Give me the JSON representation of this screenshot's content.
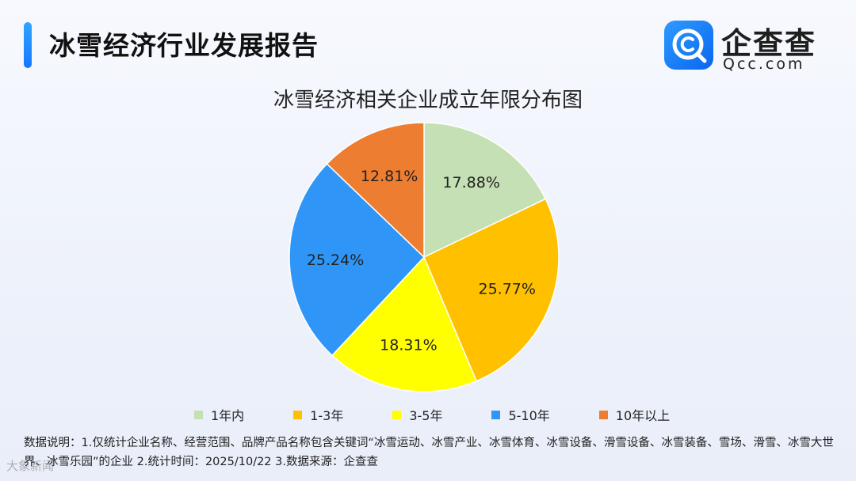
{
  "header": {
    "report_title": "冰雪经济行业发展报告",
    "accent_color": "#1677ff"
  },
  "logo": {
    "icon": "qcc-logo-icon",
    "name": "企查查",
    "domain": "Qcc.com"
  },
  "chart_data": {
    "type": "pie",
    "title": "冰雪经济相关企业成立年限分布图",
    "categories": [
      "1年内",
      "1-3年",
      "3-5年",
      "5-10年",
      "10年以上"
    ],
    "values": [
      17.88,
      25.77,
      18.31,
      25.24,
      12.81
    ],
    "labels": [
      "17.88%",
      "25.77%",
      "18.31%",
      "25.24%",
      "12.81%"
    ],
    "colors": [
      "#c5e0b4",
      "#ffc000",
      "#ffff00",
      "#2f96f7",
      "#ed7d31"
    ],
    "legend_position": "bottom",
    "start_angle": "12 o'clock, clockwise"
  },
  "footnote": {
    "text": "数据说明：1.仅统计企业名称、经营范围、品牌产品名称包含关键词“冰雪运动、冰雪产业、冰雪体育、冰雪设备、滑雪设备、冰雪装备、雪场、滑雪、冰雪大世界、冰雪乐园”的企业   2.统计时间：2025/10/22   3.数据来源：企查查"
  },
  "watermark": {
    "text": "大象新闻"
  }
}
